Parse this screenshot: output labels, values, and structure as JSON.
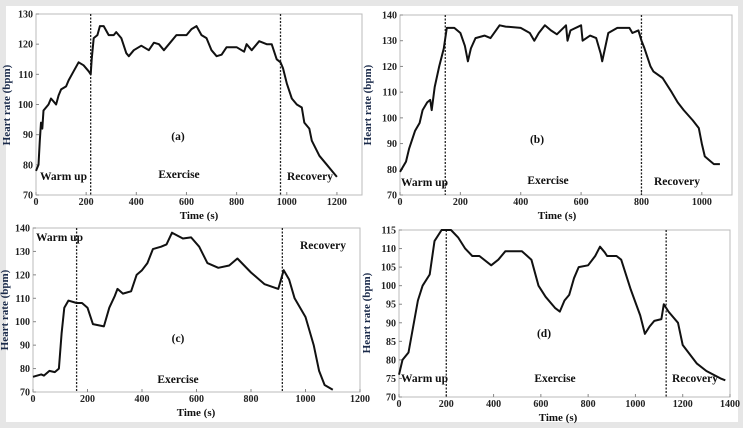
{
  "chart_data": [
    {
      "type": "line",
      "panel_label": "(a)",
      "xlabel": "Time (s)",
      "ylabel": "Heart rate (bpm)",
      "xlim": [
        0,
        1300
      ],
      "ylim": [
        70,
        130
      ],
      "xticks": [
        0,
        200,
        400,
        600,
        800,
        1000,
        1200
      ],
      "yticks": [
        70,
        80,
        90,
        100,
        110,
        120,
        130
      ],
      "phase_dividers": [
        218,
        975
      ],
      "phase_labels": [
        "Warm up",
        "Exercise",
        "Recovery"
      ],
      "grid": false,
      "x": [
        0,
        10,
        15,
        20,
        25,
        30,
        40,
        50,
        60,
        70,
        80,
        90,
        100,
        120,
        130,
        150,
        170,
        190,
        210,
        218,
        222,
        230,
        245,
        255,
        270,
        290,
        310,
        320,
        340,
        360,
        370,
        390,
        420,
        450,
        470,
        490,
        510,
        540,
        560,
        600,
        620,
        640,
        660,
        680,
        700,
        720,
        740,
        760,
        800,
        830,
        840,
        860,
        890,
        920,
        940,
        960,
        975,
        985,
        1000,
        1020,
        1040,
        1060,
        1070,
        1090,
        1100,
        1130,
        1160,
        1180,
        1200
      ],
      "y": [
        78,
        80,
        88,
        94,
        92,
        98,
        99,
        100,
        102,
        101,
        100,
        103,
        105,
        106,
        108,
        111,
        114,
        113,
        111,
        110,
        115,
        122,
        123,
        126,
        126,
        123,
        123,
        124,
        122,
        117,
        116,
        118,
        119.5,
        118,
        120.5,
        120,
        118,
        121,
        123,
        123,
        125,
        126,
        123,
        122,
        118,
        116,
        116.5,
        119,
        119,
        117.5,
        120,
        118,
        121,
        120,
        120,
        115,
        114,
        112,
        107,
        102,
        100,
        99,
        94,
        92,
        88,
        83,
        80,
        78,
        76
      ]
    },
    {
      "type": "line",
      "panel_label": "(b)",
      "xlabel": "Time (s)",
      "ylabel": "Heart rate (bpm)",
      "xlim": [
        0,
        1100
      ],
      "ylim": [
        70,
        140
      ],
      "xticks": [
        0,
        200,
        400,
        600,
        800,
        1000
      ],
      "yticks": [
        70,
        80,
        90,
        100,
        110,
        120,
        130,
        140
      ],
      "phase_dividers": [
        150,
        800
      ],
      "phase_labels": [
        "Warm up",
        "Exercise",
        "Recovery"
      ],
      "grid": false,
      "x": [
        0,
        20,
        30,
        50,
        65,
        75,
        90,
        100,
        105,
        115,
        130,
        145,
        150,
        155,
        180,
        200,
        215,
        225,
        235,
        250,
        280,
        300,
        330,
        350,
        400,
        430,
        445,
        460,
        480,
        500,
        520,
        550,
        555,
        565,
        600,
        605,
        630,
        650,
        665,
        670,
        690,
        720,
        760,
        770,
        790,
        800,
        810,
        830,
        840,
        870,
        900,
        920,
        940,
        970,
        990,
        1000,
        1010,
        1030,
        1040,
        1060
      ],
      "y": [
        79,
        83,
        88,
        95,
        98,
        103,
        106,
        107,
        103,
        112,
        120,
        127,
        131,
        135,
        135,
        133,
        128,
        122,
        127,
        131,
        132,
        131,
        136,
        135.5,
        135,
        133,
        130,
        133,
        136,
        134,
        132.5,
        136,
        130,
        134,
        136,
        130,
        132,
        131,
        125,
        122,
        133,
        135,
        135,
        133,
        134,
        130,
        127,
        120,
        118,
        115.5,
        110,
        106,
        103,
        99,
        96,
        90,
        85,
        83,
        82,
        82
      ]
    },
    {
      "type": "line",
      "panel_label": "(c)",
      "xlabel": "Time (s)",
      "ylabel": "Heart rate (bpm)",
      "xlim": [
        0,
        1200
      ],
      "ylim": [
        70,
        140
      ],
      "xticks": [
        0,
        200,
        400,
        600,
        800,
        1000,
        1200
      ],
      "yticks": [
        70,
        80,
        90,
        100,
        110,
        120,
        130,
        140
      ],
      "phase_dividers": [
        160,
        915
      ],
      "phase_labels": [
        "Warm up",
        "Exercise",
        "Recovery"
      ],
      "grid": false,
      "x": [
        0,
        30,
        40,
        60,
        80,
        95,
        105,
        115,
        130,
        160,
        180,
        200,
        220,
        260,
        280,
        300,
        310,
        330,
        360,
        380,
        400,
        420,
        440,
        470,
        490,
        510,
        550,
        580,
        610,
        640,
        680,
        720,
        750,
        800,
        850,
        900,
        920,
        940,
        960,
        1000,
        1030,
        1050,
        1070,
        1100
      ],
      "y": [
        76.5,
        77.5,
        77,
        79,
        78.5,
        80,
        95,
        106,
        109,
        108,
        108,
        106,
        99,
        98,
        106,
        111,
        114,
        112,
        113,
        120,
        122,
        125,
        131,
        132,
        133,
        138,
        135.5,
        136,
        132,
        125,
        123,
        124,
        127,
        121,
        116,
        114,
        122,
        118,
        110,
        102,
        90,
        79,
        73,
        71
      ]
    },
    {
      "type": "line",
      "panel_label": "(d)",
      "xlabel": "Time (s)",
      "ylabel": "Heart rate (bpm)",
      "xlim": [
        0,
        1400
      ],
      "ylim": [
        70,
        115
      ],
      "xticks": [
        0,
        200,
        400,
        600,
        800,
        1000,
        1200,
        1400
      ],
      "yticks": [
        70,
        75,
        80,
        85,
        90,
        95,
        100,
        105,
        110,
        115
      ],
      "phase_dividers": [
        200,
        1130
      ],
      "phase_labels": [
        "Warm up",
        "Exercise",
        "Recovery"
      ],
      "grid": false,
      "x": [
        0,
        15,
        40,
        60,
        80,
        100,
        130,
        150,
        180,
        220,
        250,
        280,
        310,
        340,
        390,
        420,
        450,
        520,
        560,
        590,
        620,
        660,
        680,
        700,
        720,
        740,
        760,
        800,
        830,
        850,
        870,
        880,
        920,
        940,
        980,
        1020,
        1040,
        1060,
        1080,
        1110,
        1120,
        1140,
        1180,
        1200,
        1260,
        1300,
        1360,
        1380
      ],
      "y": [
        76,
        80,
        82,
        89,
        96,
        100,
        103,
        112,
        115,
        115,
        113,
        110,
        108,
        108,
        105.5,
        107,
        109.3,
        109.3,
        107,
        100,
        97,
        94,
        93,
        96,
        97.5,
        102,
        105,
        105.5,
        108,
        110.5,
        109,
        108,
        108,
        107,
        99,
        92,
        87,
        89,
        90.5,
        91,
        95,
        93,
        90,
        84,
        79,
        77,
        75,
        74.5
      ]
    }
  ]
}
